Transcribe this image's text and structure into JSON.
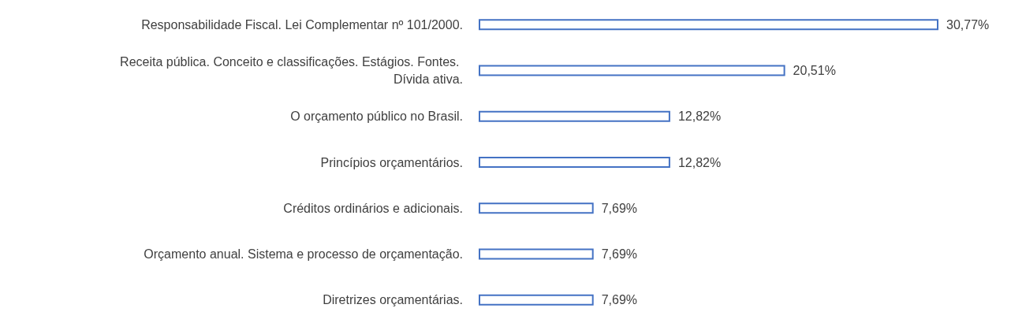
{
  "chart_data": {
    "type": "bar",
    "orientation": "horizontal",
    "categories": [
      "Responsabilidade Fiscal. Lei Complementar nº 101/2000.",
      "Receita pública. Conceito e classificações. Estágios. Fontes. Dívida ativa.",
      "O orçamento público no Brasil.",
      "Princípios orçamentários.",
      "Créditos ordinários e adicionais.",
      "Orçamento anual. Sistema e processo de orçamentação.",
      "Diretrizes orçamentárias."
    ],
    "values": [
      30.77,
      20.51,
      12.82,
      12.82,
      7.69,
      7.69,
      7.69
    ],
    "value_labels": [
      "30,77%",
      "20,51%",
      "12,82%",
      "12,82%",
      "7,69%",
      "7,69%",
      "7,69%"
    ],
    "color": "#4472c4",
    "tick_labels": "y"
  }
}
